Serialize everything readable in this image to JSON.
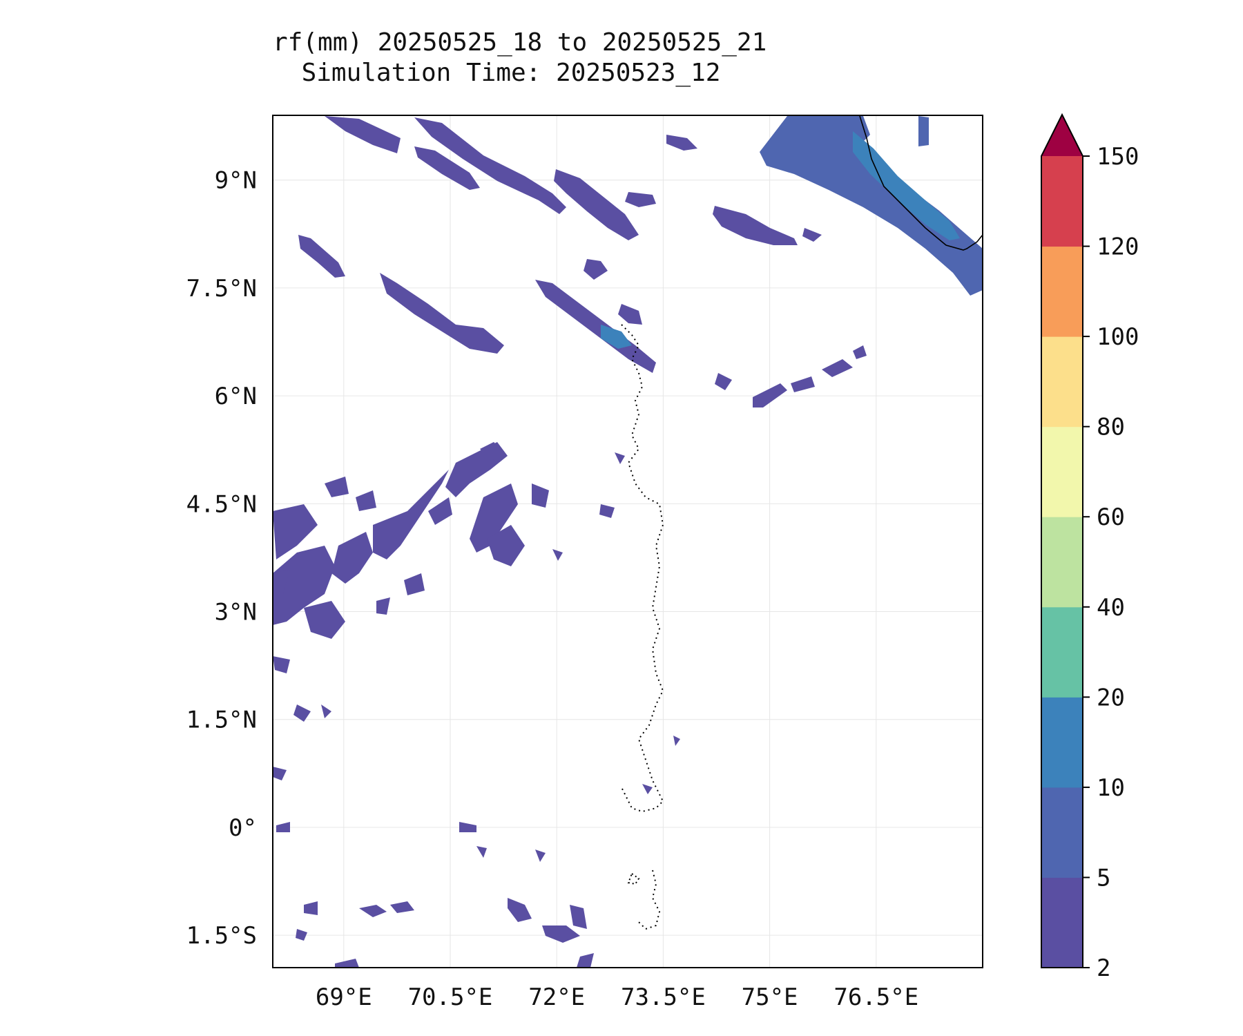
{
  "title": {
    "line1": "rf(mm) 20250525_18 to 20250525_21",
    "line2": "Simulation Time: 20250523_12"
  },
  "map": {
    "lon_range": [
      68.0,
      78.0
    ],
    "lat_range": [
      -1.95,
      9.9
    ],
    "lon_ticks": [
      69,
      70.5,
      72,
      73.5,
      75,
      76.5
    ],
    "lon_tick_labels": [
      "69°E",
      "70.5°E",
      "72°E",
      "73.5°E",
      "75°E",
      "76.5°E"
    ],
    "lat_ticks": [
      9,
      7.5,
      6,
      4.5,
      3,
      1.5,
      0,
      -1.5
    ],
    "lat_tick_labels": [
      "9°N",
      "7.5°N",
      "6°N",
      "4.5°N",
      "3°N",
      "1.5°N",
      "0°",
      "1.5°S"
    ],
    "gridlines": true
  },
  "colorbar": {
    "levels": [
      2,
      5,
      10,
      20,
      40,
      60,
      80,
      100,
      120,
      150
    ],
    "tick_labels": [
      "2",
      "5",
      "10",
      "20",
      "40",
      "60",
      "80",
      "100",
      "120",
      "150"
    ],
    "colors": [
      "#5a4fa2",
      "#4f66b0",
      "#3c82bb",
      "#66c2a5",
      "#bde3a0",
      "#f2f7ac",
      "#fcdf8b",
      "#f89d59",
      "#d6404e"
    ],
    "extend_color": "#9e0142",
    "extend": "max"
  },
  "rain_colors": {
    "light": "#5a4fa2",
    "medium": "#4f66b0",
    "heavy": "#3c82bb"
  }
}
